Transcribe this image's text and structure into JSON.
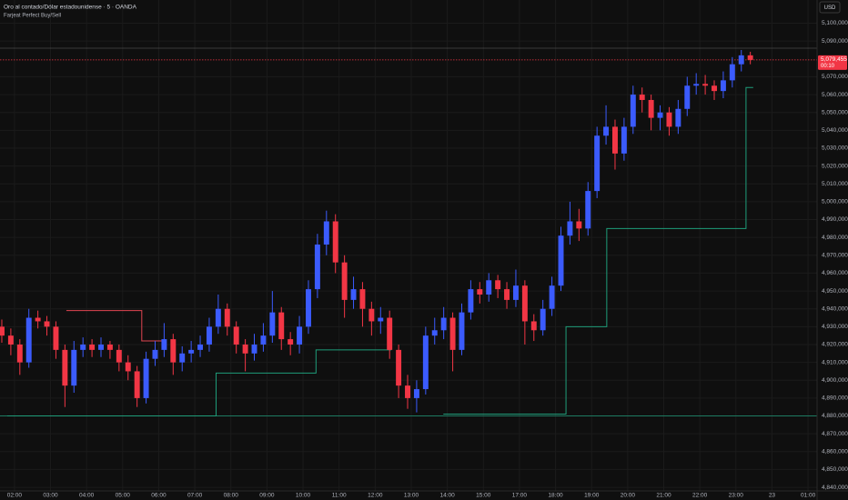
{
  "chart_data": {
    "type": "candlestick",
    "title": "Oro al contado/Dólar estadounidense · 5 · OANDA",
    "subtitle": "Farjeat Perfect Buy/Sell",
    "currency": "USD",
    "up_color": "#3b5bfd",
    "down_color": "#f23645",
    "grid": true,
    "xlim": [
      1.6,
      24.25
    ],
    "ylim": [
      4838000,
      5113000
    ],
    "xticks": [
      {
        "value": 2,
        "label": "02:00"
      },
      {
        "value": 3,
        "label": "03:00"
      },
      {
        "value": 4,
        "label": "04:00"
      },
      {
        "value": 5,
        "label": "05:00"
      },
      {
        "value": 6,
        "label": "06:00"
      },
      {
        "value": 7,
        "label": "07:00"
      },
      {
        "value": 8,
        "label": "08:00"
      },
      {
        "value": 9,
        "label": "09:00"
      },
      {
        "value": 10,
        "label": "10:00"
      },
      {
        "value": 11,
        "label": "11:00"
      },
      {
        "value": 12,
        "label": "12:00"
      },
      {
        "value": 13,
        "label": "13:00"
      },
      {
        "value": 14,
        "label": "14:00"
      },
      {
        "value": 15,
        "label": "15:00"
      },
      {
        "value": 16,
        "label": "17:00"
      },
      {
        "value": 17,
        "label": "18:00"
      },
      {
        "value": 18,
        "label": "19:00"
      },
      {
        "value": 19,
        "label": "20:00"
      },
      {
        "value": 20,
        "label": "21:00"
      },
      {
        "value": 21,
        "label": "22:00"
      },
      {
        "value": 22,
        "label": "23:00"
      },
      23,
      {
        "value": 24,
        "label": "01:00"
      }
    ],
    "yticks": [
      {
        "value": 4840000,
        "label": "4,840,000"
      },
      {
        "value": 4850000,
        "label": "4,850,000"
      },
      {
        "value": 4860000,
        "label": "4,860,000"
      },
      {
        "value": 4870000,
        "label": "4,870,000"
      },
      {
        "value": 4880000,
        "label": "4,880,000"
      },
      {
        "value": 4890000,
        "label": "4,890,000"
      },
      {
        "value": 4900000,
        "label": "4,900,000"
      },
      {
        "value": 4910000,
        "label": "4,910,000"
      },
      {
        "value": 4920000,
        "label": "4,920,000"
      },
      {
        "value": 4930000,
        "label": "4,930,000"
      },
      {
        "value": 4940000,
        "label": "4,940,000"
      },
      {
        "value": 4950000,
        "label": "4,950,000"
      },
      {
        "value": 4960000,
        "label": "4,960,000"
      },
      {
        "value": 4970000,
        "label": "4,970,000"
      },
      {
        "value": 4980000,
        "label": "4,980,000"
      },
      {
        "value": 4990000,
        "label": "4,990,000"
      },
      {
        "value": 5000000,
        "label": "5,000,000"
      },
      {
        "value": 5010000,
        "label": "5,010,000"
      },
      {
        "value": 5020000,
        "label": "5,020,000"
      },
      {
        "value": 5030000,
        "label": "5,030,000"
      },
      {
        "value": 5040000,
        "label": "5,040,000"
      },
      {
        "value": 5050000,
        "label": "5,050,000"
      },
      {
        "value": 5060000,
        "label": "5,060,000"
      },
      {
        "value": 5070000,
        "label": "5,070,000"
      },
      {
        "value": 5090000,
        "label": "5,090,000"
      },
      {
        "value": 5100000,
        "label": "5,100,000"
      }
    ],
    "x": [
      1.65,
      1.9,
      2.15,
      2.4,
      2.65,
      2.9,
      3.15,
      3.4,
      3.65,
      3.9,
      4.15,
      4.4,
      4.65,
      4.9,
      5.15,
      5.4,
      5.65,
      5.9,
      6.15,
      6.4,
      6.65,
      6.9,
      7.15,
      7.4,
      7.65,
      7.9,
      8.15,
      8.4,
      8.65,
      8.9,
      9.15,
      9.4,
      9.65,
      9.9,
      10.15,
      10.4,
      10.65,
      10.9,
      11.15,
      11.4,
      11.65,
      11.9,
      12.15,
      12.4,
      12.65,
      12.9,
      13.15,
      13.4,
      13.65,
      13.9,
      14.15,
      14.4,
      14.65,
      14.9,
      15.15,
      15.4,
      15.65,
      15.9,
      16.15,
      16.4,
      16.65,
      16.9,
      17.15,
      17.4,
      17.65,
      17.9,
      18.15,
      18.4,
      18.65,
      18.9,
      19.15,
      19.4,
      19.65,
      19.9,
      20.15,
      20.4,
      20.65,
      20.9,
      21.15,
      21.4,
      21.65,
      21.9,
      22.15,
      22.4
    ],
    "open": [
      4930000,
      4925000,
      4920000,
      4910000,
      4935000,
      4933000,
      4930000,
      4917000,
      4897000,
      4917000,
      4920000,
      4917000,
      4920000,
      4917000,
      4910000,
      4905000,
      4890000,
      4912000,
      4917000,
      4923000,
      4910000,
      4915000,
      4917000,
      4920000,
      4930000,
      4940000,
      4930000,
      4920000,
      4915000,
      4920000,
      4925000,
      4938000,
      4923000,
      4920000,
      4930000,
      4951000,
      4976000,
      4989000,
      4966000,
      4945000,
      4951000,
      4940000,
      4933000,
      4935000,
      4917000,
      4897000,
      4890000,
      4895000,
      4925000,
      4928000,
      4935000,
      4917000,
      4938000,
      4951000,
      4948000,
      4956000,
      4951000,
      4945000,
      4953000,
      4933000,
      4928000,
      4940000,
      4953000,
      4981000,
      4989000,
      4985000,
      5006000,
      5037000,
      5042000,
      5027000,
      5042000,
      5060000,
      5057000,
      5047000,
      5050000,
      5042000,
      5052000,
      5065000,
      5066000,
      5065000,
      5062000,
      5068000,
      5077000,
      5082000
    ],
    "high": [
      4934000,
      4929000,
      4923000,
      4940000,
      4939000,
      4936000,
      4933000,
      4920000,
      4922000,
      4924000,
      4923000,
      4924000,
      4922000,
      4920000,
      4914000,
      4908000,
      4916000,
      4922000,
      4932000,
      4926000,
      4919000,
      4922000,
      4925000,
      4935000,
      4948000,
      4943000,
      4933000,
      4923000,
      4926000,
      4932000,
      4950000,
      4941000,
      4927000,
      4936000,
      4956000,
      4982000,
      4995000,
      4993000,
      4970000,
      4958000,
      4955000,
      4944000,
      4941000,
      4939000,
      4920000,
      4903000,
      4900000,
      4930000,
      4935000,
      4941000,
      4938000,
      4943000,
      4956000,
      4955000,
      4960000,
      4959000,
      4955000,
      4962000,
      4956000,
      4937000,
      4945000,
      4958000,
      4986000,
      5000000,
      4996000,
      5011000,
      5042000,
      5054000,
      5046000,
      5047000,
      5065000,
      5064000,
      5060000,
      5054000,
      5053000,
      5057000,
      5070000,
      5072000,
      5071000,
      5068000,
      5073000,
      5081000,
      5085000,
      5084000
    ],
    "low": [
      4921000,
      4914000,
      4903000,
      4907000,
      4929000,
      4925000,
      4912000,
      4885000,
      4893000,
      4913000,
      4913000,
      4913000,
      4912000,
      4905000,
      4900000,
      4885000,
      4887000,
      4908000,
      4913000,
      4903000,
      4905000,
      4910000,
      4913000,
      4916000,
      4926000,
      4925000,
      4915000,
      4905000,
      4911000,
      4916000,
      4921000,
      4917000,
      4914000,
      4915000,
      4926000,
      4946000,
      4970000,
      4960000,
      4935000,
      4940000,
      4930000,
      4925000,
      4926000,
      4912000,
      4890000,
      4884000,
      4882000,
      4892000,
      4920000,
      4923000,
      4905000,
      4914000,
      4934000,
      4943000,
      4944000,
      4946000,
      4940000,
      4941000,
      4920000,
      4922000,
      4925000,
      4936000,
      4950000,
      4976000,
      4978000,
      4981000,
      5002000,
      5032000,
      5018000,
      5023000,
      5038000,
      5050000,
      5040000,
      5040000,
      5037000,
      5038000,
      5048000,
      5060000,
      5060000,
      5057000,
      5058000,
      5064000,
      5073000,
      5077000
    ],
    "close": [
      4925000,
      4920000,
      4910000,
      4935000,
      4933000,
      4930000,
      4917000,
      4897000,
      4917000,
      4920000,
      4917000,
      4920000,
      4917000,
      4910000,
      4905000,
      4890000,
      4912000,
      4917000,
      4923000,
      4910000,
      4915000,
      4917000,
      4920000,
      4930000,
      4940000,
      4930000,
      4920000,
      4915000,
      4920000,
      4925000,
      4938000,
      4923000,
      4920000,
      4930000,
      4951000,
      4976000,
      4989000,
      4966000,
      4945000,
      4951000,
      4940000,
      4933000,
      4935000,
      4917000,
      4897000,
      4890000,
      4895000,
      4925000,
      4928000,
      4935000,
      4917000,
      4938000,
      4951000,
      4948000,
      4956000,
      4951000,
      4945000,
      4953000,
      4933000,
      4928000,
      4940000,
      4953000,
      4981000,
      4989000,
      4985000,
      5006000,
      5037000,
      5042000,
      5027000,
      5042000,
      5060000,
      5057000,
      5047000,
      5050000,
      5042000,
      5052000,
      5065000,
      5066000,
      5065000,
      5062000,
      5068000,
      5077000,
      5082000,
      5079455
    ],
    "lines": [
      {
        "color": "#1f9d7a",
        "x": [
          1.8,
          7.59,
          7.59,
          10.36,
          10.36,
          12.45,
          null,
          13.89,
          17.29,
          17.29,
          18.42,
          18.42,
          22.28,
          22.28,
          22.48
        ],
        "values": [
          4880000,
          4880000,
          4904000,
          4904000,
          4917000,
          4917000,
          null,
          4881000,
          4881000,
          4930000,
          4930000,
          4985000,
          4985000,
          5064000,
          5064000
        ]
      },
      {
        "color": "#e04552",
        "x": [
          3.44,
          5.53,
          5.53,
          6.16
        ],
        "values": [
          4939000,
          4939000,
          4922000,
          4922000
        ]
      }
    ],
    "hlines": [
      {
        "value": 4880000,
        "color": "#1f9d7a"
      },
      {
        "value": 5086000,
        "color": "#4a4a4a"
      },
      {
        "value": 5079455,
        "label": "5,079,455",
        "color": "#f23645"
      }
    ],
    "countdown": "00:10"
  }
}
